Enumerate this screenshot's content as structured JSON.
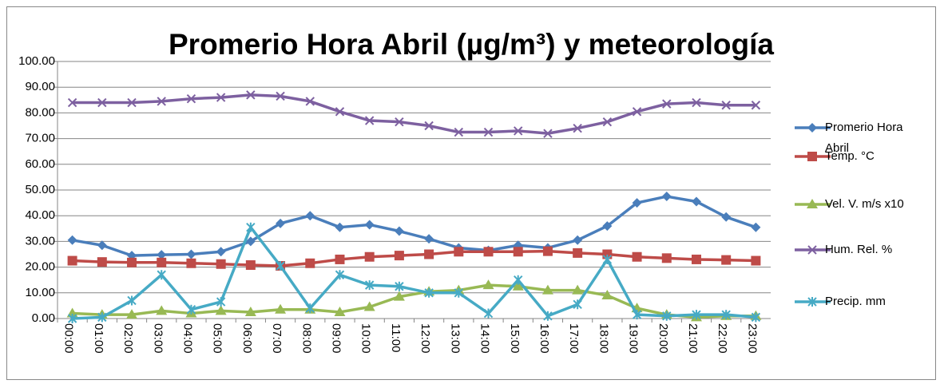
{
  "chart_data": {
    "type": "line",
    "title": "Promerio Hora Abril (µg/m³) y meteorología",
    "categories": [
      "00:00",
      "01:00",
      "02:00",
      "03:00",
      "04:00",
      "05:00",
      "06:00",
      "07:00",
      "08:00",
      "09:00",
      "10:00",
      "11:00",
      "12:00",
      "13:00",
      "14:00",
      "15:00",
      "16:00",
      "17:00",
      "18:00",
      "19:00",
      "20:00",
      "21:00",
      "22:00",
      "23:00"
    ],
    "series": [
      {
        "name": "Promerio Hora Abril",
        "color": "#4a7ebb",
        "marker": "diamond",
        "values": [
          30.5,
          28.5,
          24.5,
          24.8,
          25,
          26,
          30,
          37,
          40,
          35.5,
          36.5,
          34,
          31,
          27.5,
          26.5,
          28.5,
          27.5,
          30.5,
          36,
          45,
          47.5,
          45.5,
          39.5,
          35.5
        ]
      },
      {
        "name": "Temp. °C",
        "color": "#be4b48",
        "marker": "square",
        "values": [
          22.5,
          22,
          21.8,
          21.8,
          21.5,
          21.2,
          20.8,
          20.5,
          21.5,
          23,
          24,
          24.5,
          25,
          26,
          26,
          26,
          26.2,
          25.5,
          25,
          24,
          23.5,
          23,
          22.8,
          22.5
        ]
      },
      {
        "name": "Vel. V. m/s x10",
        "color": "#98b954",
        "marker": "triangle",
        "values": [
          2,
          1.5,
          1.5,
          3,
          2,
          3,
          2.5,
          3.5,
          3.5,
          2.5,
          4.5,
          8.5,
          10.5,
          11,
          13,
          12.5,
          11,
          11,
          9,
          4,
          1.5,
          0.5,
          1,
          1
        ]
      },
      {
        "name": "Hum. Rel. %",
        "color": "#7d60a0",
        "marker": "x",
        "values": [
          84,
          84,
          84,
          84.5,
          85.5,
          86,
          87,
          86.5,
          84.5,
          80.5,
          77,
          76.5,
          75,
          72.5,
          72.5,
          73,
          72,
          74,
          76.5,
          80.5,
          83.5,
          84,
          83,
          83
        ]
      },
      {
        "name": "Precip. mm",
        "color": "#46aac5",
        "marker": "star",
        "values": [
          0,
          0.5,
          7,
          17,
          3.5,
          6.5,
          35.5,
          20.5,
          4,
          17,
          13,
          12.5,
          10,
          10,
          2,
          15,
          1,
          5.5,
          23,
          1.5,
          1,
          1.5,
          1.5,
          0.5
        ]
      }
    ],
    "ylim": [
      0,
      100
    ],
    "yticks": [
      {
        "value": 0,
        "label": "0.00"
      },
      {
        "value": 10,
        "label": "10.00"
      },
      {
        "value": 20,
        "label": "20.00"
      },
      {
        "value": 30,
        "label": "30.00"
      },
      {
        "value": 40,
        "label": "40.00"
      },
      {
        "value": 50,
        "label": "50.00"
      },
      {
        "value": 60,
        "label": "60.00"
      },
      {
        "value": 70,
        "label": "70.00"
      },
      {
        "value": 80,
        "label": "80.00"
      },
      {
        "value": 90,
        "label": "90.00"
      },
      {
        "value": 100,
        "label": "100.00"
      }
    ],
    "grid": true
  }
}
